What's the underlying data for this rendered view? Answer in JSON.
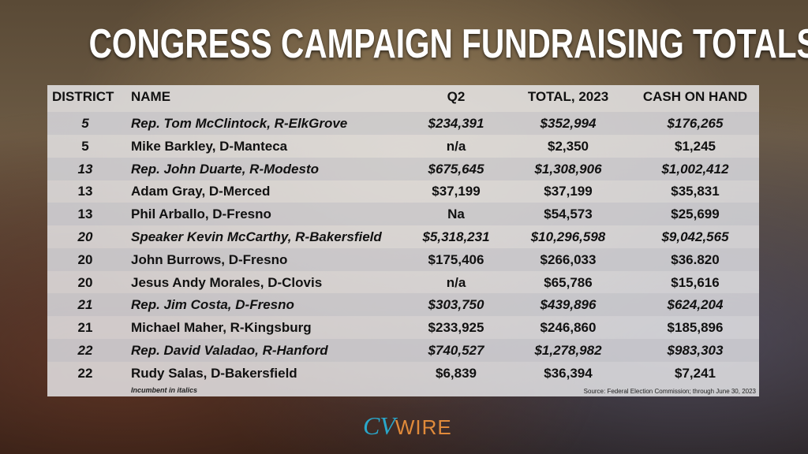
{
  "title": "CONGRESS CAMPAIGN FUNDRAISING TOTALS",
  "chart_data": {
    "type": "table",
    "title": "CONGRESS CAMPAIGN FUNDRAISING TOTALS",
    "columns": [
      "DISTRICT",
      "NAME",
      "Q2",
      "TOTAL, 2023",
      "CASH ON HAND"
    ],
    "rows": [
      {
        "district": "5",
        "name": "Rep. Tom McClintock, R-ElkGrove",
        "q2": "$234,391",
        "total": "$352,994",
        "cash": "$176,265",
        "incumbent": true
      },
      {
        "district": "5",
        "name": "Mike Barkley, D-Manteca",
        "q2": "n/a",
        "total": "$2,350",
        "cash": "$1,245",
        "incumbent": false
      },
      {
        "district": "13",
        "name": "Rep. John Duarte, R-Modesto",
        "q2": "$675,645",
        "total": "$1,308,906",
        "cash": "$1,002,412",
        "incumbent": true
      },
      {
        "district": "13",
        "name": "Adam Gray, D-Merced",
        "q2": "$37,199",
        "total": "$37,199",
        "cash": "$35,831",
        "incumbent": false
      },
      {
        "district": "13",
        "name": "Phil Arballo, D-Fresno",
        "q2": "Na",
        "total": "$54,573",
        "cash": "$25,699",
        "incumbent": false
      },
      {
        "district": "20",
        "name": "Speaker Kevin McCarthy, R-Bakersfield",
        "q2": "$5,318,231",
        "total": "$10,296,598",
        "cash": "$9,042,565",
        "incumbent": true
      },
      {
        "district": "20",
        "name": "John Burrows, D-Fresno",
        "q2": "$175,406",
        "total": "$266,033",
        "cash": "$36.820",
        "incumbent": false
      },
      {
        "district": "20",
        "name": "Jesus Andy Morales, D-Clovis",
        "q2": "n/a",
        "total": "$65,786",
        "cash": "$15,616",
        "incumbent": false
      },
      {
        "district": "21",
        "name": "Rep. Jim Costa, D-Fresno",
        "q2": "$303,750",
        "total": "$439,896",
        "cash": "$624,204",
        "incumbent": true
      },
      {
        "district": "21",
        "name": "Michael Maher, R-Kingsburg",
        "q2": "$233,925",
        "total": "$246,860",
        "cash": "$185,896",
        "incumbent": false
      },
      {
        "district": "22",
        "name": "Rep. David Valadao, R-Hanford",
        "q2": "$740,527",
        "total": "$1,278,982",
        "cash": "$983,303",
        "incumbent": true
      },
      {
        "district": "22",
        "name": "Rudy Salas, D-Bakersfield",
        "q2": "$6,839",
        "total": "$36,394",
        "cash": "$7,241",
        "incumbent": false
      }
    ],
    "note": "Incumbent in italics",
    "source": "Source: Federal Election Commission; through June 30, 2023"
  },
  "logo": {
    "cv": "CV",
    "wire": "WIRE"
  },
  "colors": {
    "logo_cv": "#2aa6c9",
    "logo_wire": "#e08a3a",
    "title": "#ffffff"
  }
}
